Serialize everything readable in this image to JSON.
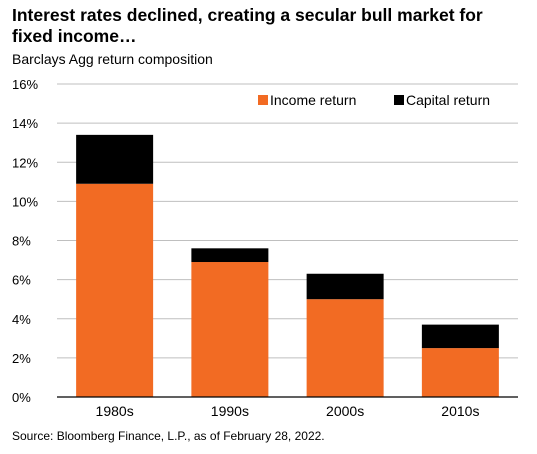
{
  "title": "Interest rates declined, creating a secular bull market for fixed income…",
  "subtitle": "Barclays Agg return composition",
  "source": "Source: Bloomberg Finance, L.P., as of February 28, 2022.",
  "colors": {
    "income": "#F26B23",
    "capital": "#000000",
    "grid": "#BFBFBF"
  },
  "chart_data": {
    "type": "bar",
    "stacked": true,
    "categories": [
      "1980s",
      "1990s",
      "2000s",
      "2010s"
    ],
    "series": [
      {
        "name": "Income return",
        "values": [
          10.9,
          6.9,
          5.0,
          2.5
        ]
      },
      {
        "name": "Capital return",
        "values": [
          2.5,
          0.7,
          1.3,
          1.2
        ]
      }
    ],
    "ylim": [
      0,
      16
    ],
    "yticks": [
      0,
      2,
      4,
      6,
      8,
      10,
      12,
      14,
      16
    ],
    "ytick_labels": [
      "0%",
      "2%",
      "4%",
      "6%",
      "8%",
      "10%",
      "12%",
      "14%",
      "16%"
    ],
    "xlabel": "",
    "ylabel": "",
    "grid": true,
    "legend_position": "top-right"
  }
}
